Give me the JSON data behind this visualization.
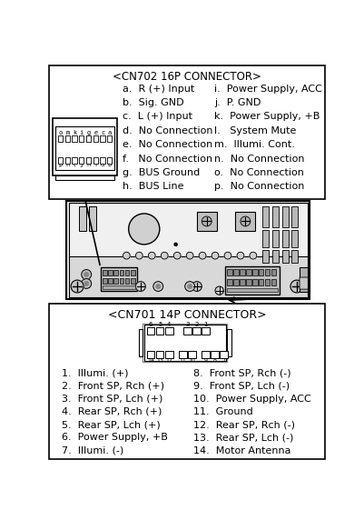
{
  "title_cn702": "<CN702 16P CONNECTOR>",
  "title_cn701": "<CN701 14P CONNECTOR>",
  "bg_color": "#ffffff",
  "cn702_left": [
    "a.  R (+) Input",
    "b.  Sig. GND",
    "c.  L (+) Input",
    "d.  No Connection",
    "e.  No Connection",
    "f.   No Connection",
    "g.  BUS Ground",
    "h.  BUS Line"
  ],
  "cn702_right": [
    "i.  Power Supply, ACC",
    "j.  P. GND",
    "k.  Power Supply, +B",
    "l.   System Mute",
    "m.  Illumi. Cont.",
    "n.  No Connection",
    "o.  No Connection",
    "p.  No Connection"
  ],
  "cn701_left": [
    "1.  Illumi. (+)",
    "2.  Front SP, Rch (+)",
    "3.  Front SP, Lch (+)",
    "4.  Rear SP, Rch (+)",
    "5.  Rear SP, Lch (+)",
    "6.  Power Supply, +B",
    "7.  Illumi. (-)"
  ],
  "cn701_right": [
    "8.  Front SP, Rch (-)",
    "9.  Front SP, Lch (-)",
    "10.  Power Supply, ACC",
    "11.  Ground",
    "12.  Rear SP, Rch (-)",
    "13.  Rear SP, Lch (-)",
    "14.  Motor Antenna"
  ],
  "top_labels": [
    "o",
    "m",
    "k",
    "i",
    "g",
    "e",
    "c",
    "a"
  ],
  "bot_labels": [
    "p",
    "n",
    "l",
    "j",
    "h",
    "f",
    "d",
    "b"
  ]
}
